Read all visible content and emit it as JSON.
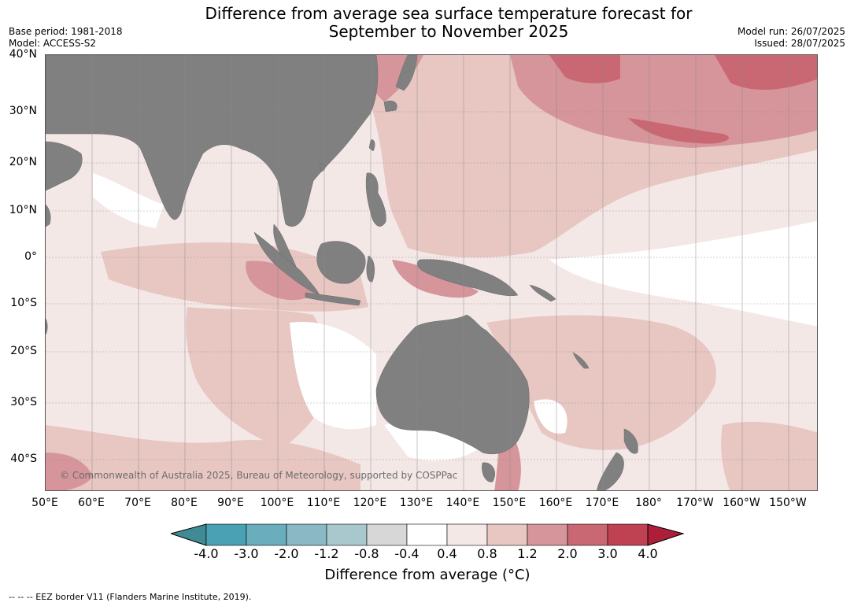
{
  "title_line1": "Difference from average sea surface temperature forecast for",
  "title_line2": "September to November 2025",
  "base_period": "Base period: 1981-2018",
  "model": "Model: ACCESS-S2",
  "model_run": "Model run: 26/07/2025",
  "issued": "Issued: 28/07/2025",
  "lat_labels": [
    "40°N",
    "30°N",
    "20°N",
    "10°N",
    "0°",
    "10°S",
    "20°S",
    "30°S",
    "40°S"
  ],
  "lon_labels": [
    "50°E",
    "60°E",
    "70°E",
    "80°E",
    "90°E",
    "100°E",
    "110°E",
    "120°E",
    "130°E",
    "140°E",
    "150°E",
    "160°E",
    "170°E",
    "180°",
    "170°W",
    "160°W",
    "150°W"
  ],
  "copyright": "© Commonwealth of Australia 2025, Bureau of Meteorology, supported by COSPPac",
  "colorbar": {
    "ticks": [
      "-4.0",
      "-3.0",
      "-2.0",
      "-1.2",
      "-0.8",
      "-0.4",
      "0.4",
      "0.8",
      "1.2",
      "2.0",
      "3.0",
      "4.0"
    ],
    "colors": [
      "#408a94",
      "#4aa1b3",
      "#6aaebd",
      "#8ab8c5",
      "#a8c8cd",
      "#d7d7d7",
      "#ffffff",
      "#f4e8e7",
      "#e8c7c3",
      "#d6959b",
      "#c96872",
      "#bf4253",
      "#ad1f38"
    ],
    "label": "Difference from average (°C)"
  },
  "land_color": "#808080",
  "footnote": "--  --  -- EEZ border V11 (Flanders Marine Institute, 2019)."
}
